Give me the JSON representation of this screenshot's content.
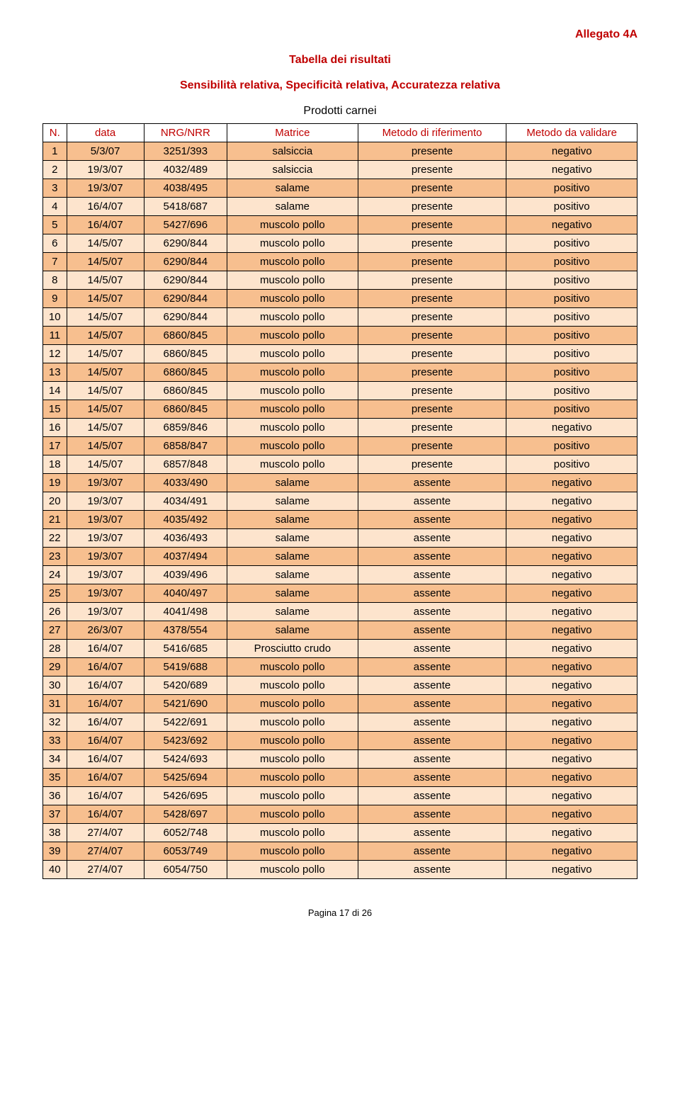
{
  "header_right": "Allegato 4A",
  "title": "Tabella dei risultati",
  "subtitle": "Sensibilità relativa, Specificità relativa, Accuratezza relativa",
  "section_label": "Prodotti carnei",
  "footer": "Pagina 17 di 26",
  "table": {
    "columns": [
      "N.",
      "data",
      "NRG/NRR",
      "Matrice",
      "Metodo di riferimento",
      "Metodo da validare"
    ],
    "header_color": "#c00000",
    "border_color": "#000000",
    "row_colors": {
      "light": "#fde4cd",
      "dark": "#f7bf8f"
    },
    "rows": [
      {
        "n": "1",
        "data": "5/3/07",
        "nrg": "3251/393",
        "mat": "salsiccia",
        "rif": "presente",
        "val": "negativo",
        "shade": "dark"
      },
      {
        "n": "2",
        "data": "19/3/07",
        "nrg": "4032/489",
        "mat": "salsiccia",
        "rif": "presente",
        "val": "negativo",
        "shade": "light"
      },
      {
        "n": "3",
        "data": "19/3/07",
        "nrg": "4038/495",
        "mat": "salame",
        "rif": "presente",
        "val": "positivo",
        "shade": "dark"
      },
      {
        "n": "4",
        "data": "16/4/07",
        "nrg": "5418/687",
        "mat": "salame",
        "rif": "presente",
        "val": "positivo",
        "shade": "light"
      },
      {
        "n": "5",
        "data": "16/4/07",
        "nrg": "5427/696",
        "mat": "muscolo pollo",
        "rif": "presente",
        "val": "negativo",
        "shade": "dark"
      },
      {
        "n": "6",
        "data": "14/5/07",
        "nrg": "6290/844",
        "mat": "muscolo pollo",
        "rif": "presente",
        "val": "positivo",
        "shade": "light"
      },
      {
        "n": "7",
        "data": "14/5/07",
        "nrg": "6290/844",
        "mat": "muscolo pollo",
        "rif": "presente",
        "val": "positivo",
        "shade": "dark"
      },
      {
        "n": "8",
        "data": "14/5/07",
        "nrg": "6290/844",
        "mat": "muscolo pollo",
        "rif": "presente",
        "val": "positivo",
        "shade": "light"
      },
      {
        "n": "9",
        "data": "14/5/07",
        "nrg": "6290/844",
        "mat": "muscolo pollo",
        "rif": "presente",
        "val": "positivo",
        "shade": "dark"
      },
      {
        "n": "10",
        "data": "14/5/07",
        "nrg": "6290/844",
        "mat": "muscolo pollo",
        "rif": "presente",
        "val": "positivo",
        "shade": "light"
      },
      {
        "n": "11",
        "data": "14/5/07",
        "nrg": "6860/845",
        "mat": "muscolo pollo",
        "rif": "presente",
        "val": "positivo",
        "shade": "dark"
      },
      {
        "n": "12",
        "data": "14/5/07",
        "nrg": "6860/845",
        "mat": "muscolo pollo",
        "rif": "presente",
        "val": "positivo",
        "shade": "light"
      },
      {
        "n": "13",
        "data": "14/5/07",
        "nrg": "6860/845",
        "mat": "muscolo pollo",
        "rif": "presente",
        "val": "positivo",
        "shade": "dark"
      },
      {
        "n": "14",
        "data": "14/5/07",
        "nrg": "6860/845",
        "mat": "muscolo pollo",
        "rif": "presente",
        "val": "positivo",
        "shade": "light"
      },
      {
        "n": "15",
        "data": "14/5/07",
        "nrg": "6860/845",
        "mat": "muscolo pollo",
        "rif": "presente",
        "val": "positivo",
        "shade": "dark"
      },
      {
        "n": "16",
        "data": "14/5/07",
        "nrg": "6859/846",
        "mat": "muscolo pollo",
        "rif": "presente",
        "val": "negativo",
        "shade": "light"
      },
      {
        "n": "17",
        "data": "14/5/07",
        "nrg": "6858/847",
        "mat": "muscolo pollo",
        "rif": "presente",
        "val": "positivo",
        "shade": "dark"
      },
      {
        "n": "18",
        "data": "14/5/07",
        "nrg": "6857/848",
        "mat": "muscolo pollo",
        "rif": "presente",
        "val": "positivo",
        "shade": "light"
      },
      {
        "n": "19",
        "data": "19/3/07",
        "nrg": "4033/490",
        "mat": "salame",
        "rif": "assente",
        "val": "negativo",
        "shade": "dark"
      },
      {
        "n": "20",
        "data": "19/3/07",
        "nrg": "4034/491",
        "mat": "salame",
        "rif": "assente",
        "val": "negativo",
        "shade": "light"
      },
      {
        "n": "21",
        "data": "19/3/07",
        "nrg": "4035/492",
        "mat": "salame",
        "rif": "assente",
        "val": "negativo",
        "shade": "dark"
      },
      {
        "n": "22",
        "data": "19/3/07",
        "nrg": "4036/493",
        "mat": "salame",
        "rif": "assente",
        "val": "negativo",
        "shade": "light"
      },
      {
        "n": "23",
        "data": "19/3/07",
        "nrg": "4037/494",
        "mat": "salame",
        "rif": "assente",
        "val": "negativo",
        "shade": "dark"
      },
      {
        "n": "24",
        "data": "19/3/07",
        "nrg": "4039/496",
        "mat": "salame",
        "rif": "assente",
        "val": "negativo",
        "shade": "light"
      },
      {
        "n": "25",
        "data": "19/3/07",
        "nrg": "4040/497",
        "mat": "salame",
        "rif": "assente",
        "val": "negativo",
        "shade": "dark"
      },
      {
        "n": "26",
        "data": "19/3/07",
        "nrg": "4041/498",
        "mat": "salame",
        "rif": "assente",
        "val": "negativo",
        "shade": "light"
      },
      {
        "n": "27",
        "data": "26/3/07",
        "nrg": "4378/554",
        "mat": "salame",
        "rif": "assente",
        "val": "negativo",
        "shade": "dark"
      },
      {
        "n": "28",
        "data": "16/4/07",
        "nrg": "5416/685",
        "mat": "Prosciutto crudo",
        "rif": "assente",
        "val": "negativo",
        "shade": "light"
      },
      {
        "n": "29",
        "data": "16/4/07",
        "nrg": "5419/688",
        "mat": "muscolo pollo",
        "rif": "assente",
        "val": "negativo",
        "shade": "dark"
      },
      {
        "n": "30",
        "data": "16/4/07",
        "nrg": "5420/689",
        "mat": "muscolo pollo",
        "rif": "assente",
        "val": "negativo",
        "shade": "light"
      },
      {
        "n": "31",
        "data": "16/4/07",
        "nrg": "5421/690",
        "mat": "muscolo pollo",
        "rif": "assente",
        "val": "negativo",
        "shade": "dark"
      },
      {
        "n": "32",
        "data": "16/4/07",
        "nrg": "5422/691",
        "mat": "muscolo pollo",
        "rif": "assente",
        "val": "negativo",
        "shade": "light"
      },
      {
        "n": "33",
        "data": "16/4/07",
        "nrg": "5423/692",
        "mat": "muscolo pollo",
        "rif": "assente",
        "val": "negativo",
        "shade": "dark"
      },
      {
        "n": "34",
        "data": "16/4/07",
        "nrg": "5424/693",
        "mat": "muscolo pollo",
        "rif": "assente",
        "val": "negativo",
        "shade": "light"
      },
      {
        "n": "35",
        "data": "16/4/07",
        "nrg": "5425/694",
        "mat": "muscolo pollo",
        "rif": "assente",
        "val": "negativo",
        "shade": "dark"
      },
      {
        "n": "36",
        "data": "16/4/07",
        "nrg": "5426/695",
        "mat": "muscolo pollo",
        "rif": "assente",
        "val": "negativo",
        "shade": "light"
      },
      {
        "n": "37",
        "data": "16/4/07",
        "nrg": "5428/697",
        "mat": "muscolo pollo",
        "rif": "assente",
        "val": "negativo",
        "shade": "dark"
      },
      {
        "n": "38",
        "data": "27/4/07",
        "nrg": "6052/748",
        "mat": "muscolo pollo",
        "rif": "assente",
        "val": "negativo",
        "shade": "light"
      },
      {
        "n": "39",
        "data": "27/4/07",
        "nrg": "6053/749",
        "mat": "muscolo pollo",
        "rif": "assente",
        "val": "negativo",
        "shade": "dark"
      },
      {
        "n": "40",
        "data": "27/4/07",
        "nrg": "6054/750",
        "mat": "muscolo pollo",
        "rif": "assente",
        "val": "negativo",
        "shade": "light"
      }
    ]
  }
}
